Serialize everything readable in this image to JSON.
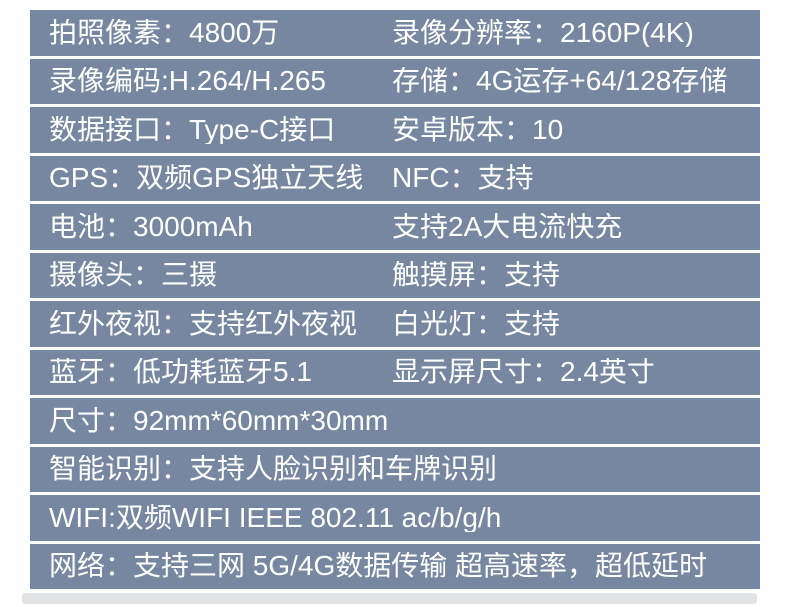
{
  "colors": {
    "row_bg": "#7787a2",
    "row_text": "#ffffff",
    "page_bg": "#ffffff",
    "bottom_shadow": "#e2e3e4"
  },
  "table": {
    "description": "product-spec-table",
    "rows": [
      {
        "left": "拍照像素：4800万",
        "right": "录像分辨率：2160P(4K)"
      },
      {
        "left": "录像编码:H.264/H.265",
        "right": "存储：4G运存+64/128存储"
      },
      {
        "left": "数据接口：Type-C接口",
        "right": "安卓版本：10"
      },
      {
        "left": "GPS：双频GPS独立天线",
        "right": "NFC：支持"
      },
      {
        "left": "电池：3000mAh",
        "right": "支持2A大电流快充"
      },
      {
        "left": "摄像头：三摄",
        "right": "触摸屏：支持"
      },
      {
        "left": "红外夜视：支持红外夜视",
        "right": "白光灯：支持"
      },
      {
        "left": "蓝牙：低功耗蓝牙5.1",
        "right": "显示屏尺寸：2.4英寸"
      },
      {
        "left": "尺寸：92mm*60mm*30mm"
      },
      {
        "left": "智能识别：支持人脸识别和车牌识别"
      },
      {
        "left": "WIFI:双频WIFI IEEE 802.11 ac/b/g/h"
      },
      {
        "left": "网络：支持三网 5G/4G数据传输  超高速率，超低延时"
      }
    ]
  }
}
